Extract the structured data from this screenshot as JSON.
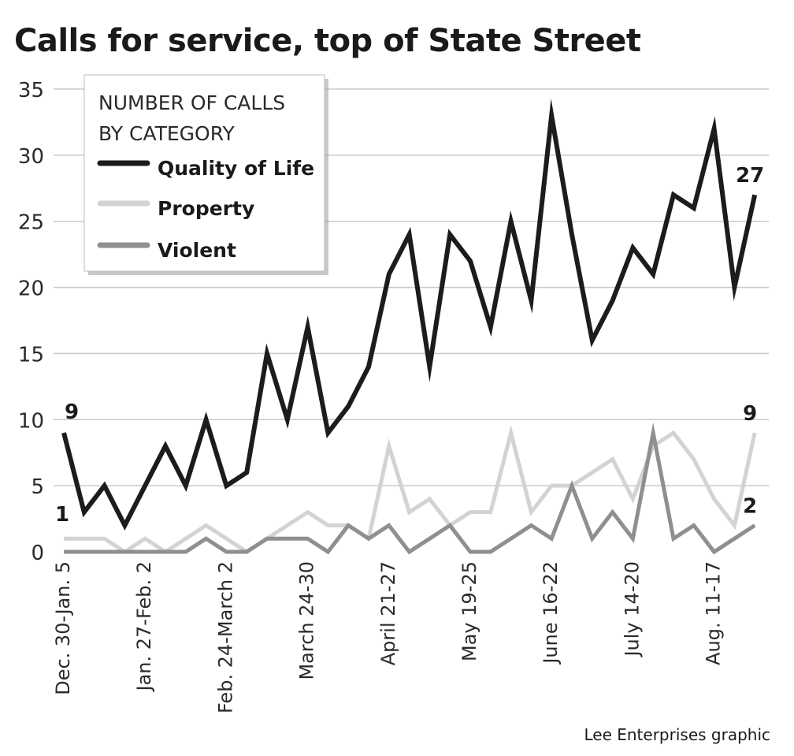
{
  "chart_data": {
    "type": "line",
    "title": "Calls for service, top of State Street",
    "ylim": [
      0,
      35
    ],
    "yticks": [
      0,
      5,
      10,
      15,
      20,
      25,
      30,
      35
    ],
    "grid": true,
    "legend_placement": "top-left",
    "legend_title": [
      "NUMBER OF CALLS",
      "BY CATEGORY"
    ],
    "x_tick_labels": [
      {
        "index": 0,
        "label": "Dec. 30-Jan. 5"
      },
      {
        "index": 4,
        "label": "Jan. 27-Feb. 2"
      },
      {
        "index": 8,
        "label": "Feb. 24-March 2"
      },
      {
        "index": 12,
        "label": "March 24-30"
      },
      {
        "index": 16,
        "label": "April 21-27"
      },
      {
        "index": 20,
        "label": "May 19-25"
      },
      {
        "index": 24,
        "label": "June 16-22"
      },
      {
        "index": 28,
        "label": "July 14-20"
      },
      {
        "index": 32,
        "label": "Aug. 11-17"
      }
    ],
    "series": [
      {
        "name": "Quality of Life",
        "color": "#1c1c1c",
        "values": [
          9,
          3,
          5,
          2,
          5,
          8,
          5,
          10,
          5,
          6,
          15,
          10,
          17,
          9,
          11,
          14,
          21,
          24,
          14,
          24,
          22,
          17,
          25,
          19,
          33,
          24,
          16,
          19,
          23,
          21,
          27,
          26,
          32,
          20,
          27
        ]
      },
      {
        "name": "Property",
        "color": "#d3d3d3",
        "values": [
          1,
          1,
          1,
          0,
          1,
          0,
          1,
          2,
          1,
          0,
          1,
          2,
          3,
          2,
          2,
          1,
          8,
          3,
          4,
          2,
          3,
          3,
          9,
          3,
          5,
          5,
          6,
          7,
          4,
          8,
          9,
          7,
          4,
          2,
          9
        ]
      },
      {
        "name": "Violent",
        "color": "#8f8f8f",
        "values": [
          0,
          0,
          0,
          0,
          0,
          0,
          0,
          1,
          0,
          0,
          1,
          1,
          1,
          0,
          2,
          1,
          2,
          0,
          1,
          2,
          0,
          0,
          1,
          2,
          1,
          5,
          1,
          3,
          1,
          9,
          1,
          2,
          0,
          1,
          2
        ]
      }
    ],
    "data_labels": [
      {
        "series": 0,
        "index": 0,
        "text": "9"
      },
      {
        "series": 1,
        "index": 0,
        "text": "1"
      },
      {
        "series": 0,
        "index": 34,
        "text": "27"
      },
      {
        "series": 1,
        "index": 34,
        "text": "9"
      },
      {
        "series": 2,
        "index": 34,
        "text": "2"
      }
    ]
  },
  "credit": "Lee Enterprises graphic"
}
